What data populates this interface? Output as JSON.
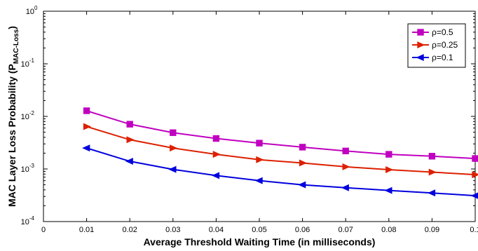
{
  "chart_data": {
    "type": "line",
    "title": "",
    "xlabel": "Average Threshold Waiting Time (in milliseconds)",
    "ylabel": "MAC Layer Loss Probability (P",
    "ylabel_sub": "MAC-Loss",
    "ylabel_end": ")",
    "y_scale": "log",
    "xlim": [
      0,
      0.1
    ],
    "ylim": [
      0.0001,
      1
    ],
    "x_ticks": [
      "0",
      "0.01",
      "0.02",
      "0.03",
      "0.04",
      "0.05",
      "0.06",
      "0.07",
      "0.08",
      "0.09",
      "0.1"
    ],
    "y_ticks": [
      {
        "base": "10",
        "exp": "0",
        "value": 1
      },
      {
        "base": "10",
        "exp": "-1",
        "value": 0.1
      },
      {
        "base": "10",
        "exp": "-2",
        "value": 0.01
      },
      {
        "base": "10",
        "exp": "-3",
        "value": 0.001
      },
      {
        "base": "10",
        "exp": "-4",
        "value": 0.0001
      }
    ],
    "grid": false,
    "legend_position": "top-right",
    "x": [
      0.01,
      0.02,
      0.03,
      0.04,
      0.05,
      0.06,
      0.07,
      0.08,
      0.09,
      0.1
    ],
    "series": [
      {
        "name": "ρ=0.5",
        "color": "#c000c0",
        "marker": "square",
        "values": [
          0.0128,
          0.0071,
          0.0049,
          0.0038,
          0.0031,
          0.0026,
          0.0022,
          0.0019,
          0.00175,
          0.00158
        ]
      },
      {
        "name": "ρ=0.25",
        "color": "#dd2000",
        "marker": "triangle-right",
        "values": [
          0.0064,
          0.0036,
          0.0025,
          0.0019,
          0.0015,
          0.0013,
          0.0011,
          0.00097,
          0.00087,
          0.00078
        ]
      },
      {
        "name": "ρ=0.1",
        "color": "#0000dd",
        "marker": "triangle-left",
        "values": [
          0.0025,
          0.0014,
          0.00098,
          0.00075,
          0.0006,
          0.0005,
          0.00044,
          0.00039,
          0.00035,
          0.00031
        ]
      }
    ]
  }
}
